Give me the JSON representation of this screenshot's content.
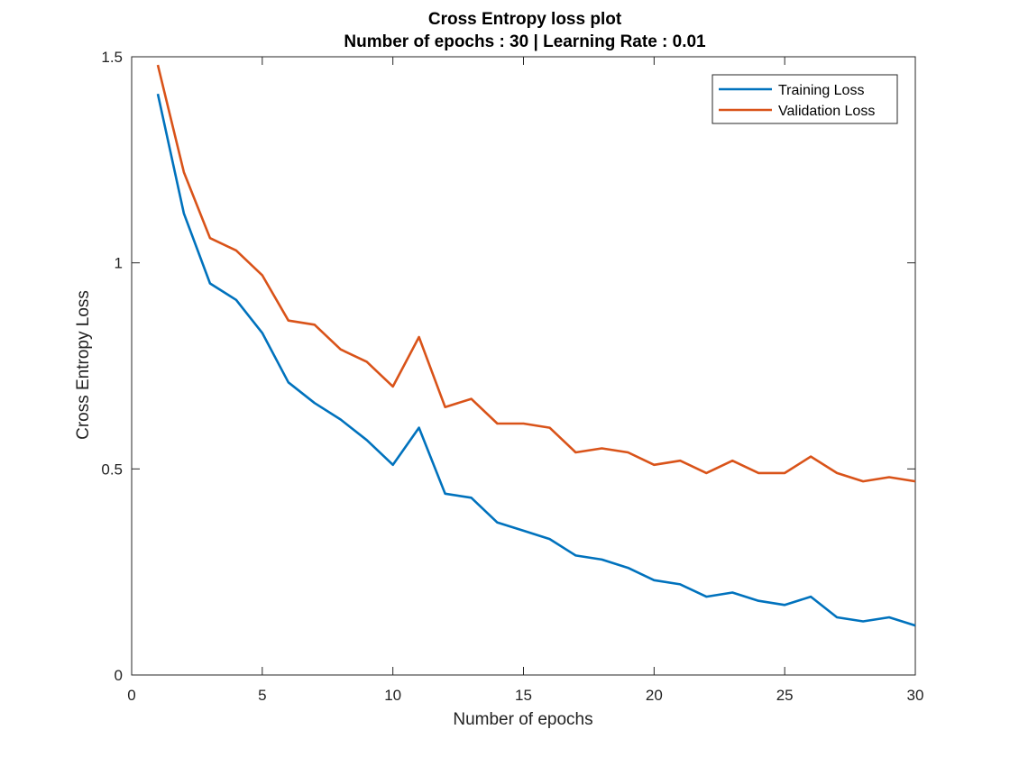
{
  "chart_data": {
    "type": "line",
    "title": "Cross Entropy loss plot",
    "subtitle": "Number of epochs : 30 | Learning Rate : 0.01",
    "xlabel": "Number of epochs",
    "ylabel": "Cross Entropy Loss",
    "xlim": [
      0,
      30
    ],
    "ylim": [
      0,
      1.5
    ],
    "xticks": [
      "0",
      "5",
      "10",
      "15",
      "20",
      "25",
      "30"
    ],
    "yticks": [
      "0",
      "0.5",
      "1",
      "1.5"
    ],
    "grid": false,
    "legend_position": "top-right",
    "x": [
      1,
      2,
      3,
      4,
      5,
      6,
      7,
      8,
      9,
      10,
      11,
      12,
      13,
      14,
      15,
      16,
      17,
      18,
      19,
      20,
      21,
      22,
      23,
      24,
      25,
      26,
      27,
      28,
      29,
      30
    ],
    "series": [
      {
        "name": "Training Loss",
        "color": "#0072BD",
        "values": [
          1.41,
          1.12,
          0.95,
          0.91,
          0.83,
          0.71,
          0.66,
          0.62,
          0.57,
          0.51,
          0.6,
          0.44,
          0.43,
          0.37,
          0.35,
          0.33,
          0.29,
          0.28,
          0.26,
          0.23,
          0.22,
          0.19,
          0.2,
          0.18,
          0.17,
          0.19,
          0.14,
          0.13,
          0.14,
          0.12
        ]
      },
      {
        "name": "Validation Loss",
        "color": "#D95319",
        "values": [
          1.48,
          1.22,
          1.06,
          1.03,
          0.97,
          0.86,
          0.85,
          0.79,
          0.76,
          0.7,
          0.82,
          0.65,
          0.67,
          0.61,
          0.61,
          0.6,
          0.54,
          0.55,
          0.54,
          0.51,
          0.52,
          0.49,
          0.52,
          0.49,
          0.49,
          0.53,
          0.49,
          0.47,
          0.48,
          0.47
        ]
      }
    ]
  }
}
